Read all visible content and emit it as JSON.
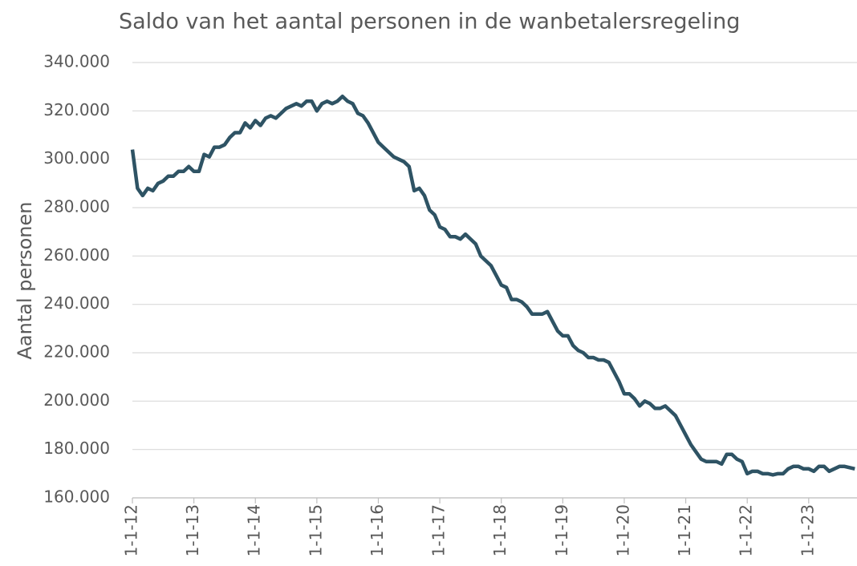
{
  "chart_data": {
    "type": "line",
    "title": "Saldo van het aantal personen in de wanbetalersregeling",
    "y_label": "Aantal personen",
    "categories": [
      "1-1-12",
      null,
      null,
      null,
      null,
      null,
      null,
      null,
      null,
      null,
      null,
      null,
      "1-1-13",
      null,
      null,
      null,
      null,
      null,
      null,
      null,
      null,
      null,
      null,
      null,
      "1-1-14",
      null,
      null,
      null,
      null,
      null,
      null,
      null,
      null,
      null,
      null,
      null,
      "1-1-15",
      null,
      null,
      null,
      null,
      null,
      null,
      null,
      null,
      null,
      null,
      null,
      "1-1-16",
      null,
      null,
      null,
      null,
      null,
      null,
      null,
      null,
      null,
      null,
      null,
      "1-1-17",
      null,
      null,
      null,
      null,
      null,
      null,
      null,
      null,
      null,
      null,
      null,
      "1-1-18",
      null,
      null,
      null,
      null,
      null,
      null,
      null,
      null,
      null,
      null,
      null,
      "1-1-19",
      null,
      null,
      null,
      null,
      null,
      null,
      null,
      null,
      null,
      null,
      null,
      "1-1-20",
      null,
      null,
      null,
      null,
      null,
      null,
      null,
      null,
      null,
      null,
      null,
      "1-1-21",
      null,
      null,
      null,
      null,
      null,
      null,
      null,
      null,
      null,
      null,
      null,
      "1-1-22",
      null,
      null,
      null,
      null,
      null,
      null,
      null,
      null,
      null,
      null,
      null,
      "1-1-23",
      null,
      null,
      null,
      null,
      null,
      null,
      null,
      null,
      null
    ],
    "series": [
      {
        "color": "#2e5364",
        "values": [
          304000,
          288000,
          285000,
          288000,
          287000,
          290000,
          291000,
          293000,
          293000,
          295000,
          295000,
          297000,
          295000,
          295000,
          302000,
          301000,
          305000,
          305000,
          306000,
          309000,
          311000,
          311000,
          315000,
          313000,
          316000,
          314000,
          317000,
          318000,
          317000,
          319000,
          321000,
          322000,
          323000,
          322000,
          324000,
          324000,
          320000,
          323000,
          324000,
          323000,
          324000,
          326000,
          324000,
          323000,
          319000,
          318000,
          315000,
          311000,
          307000,
          305000,
          303000,
          301000,
          300000,
          299000,
          297000,
          287000,
          288000,
          285000,
          279000,
          277000,
          272000,
          271000,
          268000,
          268000,
          267000,
          269000,
          267000,
          265000,
          260000,
          258000,
          256000,
          252000,
          248000,
          247000,
          242000,
          242000,
          241000,
          239000,
          236000,
          236000,
          236000,
          237000,
          233000,
          229000,
          227000,
          227000,
          223000,
          221000,
          220000,
          218000,
          218000,
          217000,
          217000,
          216000,
          212000,
          208000,
          203000,
          203000,
          201000,
          198000,
          200000,
          199000,
          197000,
          197000,
          198000,
          196000,
          194000,
          190000,
          186000,
          182000,
          179000,
          176000,
          175000,
          175000,
          175000,
          174000,
          178000,
          178000,
          176000,
          175000,
          170000,
          171000,
          171000,
          170000,
          170000,
          169500,
          170000,
          170000,
          172000,
          173000,
          173000,
          172000,
          172000,
          171000,
          173000,
          173000,
          171000,
          172000,
          173000,
          173000,
          172500,
          172000
        ]
      }
    ],
    "ylim": [
      160000,
      340000
    ],
    "yticks": [
      {
        "value": 160000,
        "label": "160.000"
      },
      {
        "value": 180000,
        "label": "180.000"
      },
      {
        "value": 200000,
        "label": "200.000"
      },
      {
        "value": 220000,
        "label": "220.000"
      },
      {
        "value": 240000,
        "label": "240.000"
      },
      {
        "value": 260000,
        "label": "260.000"
      },
      {
        "value": 280000,
        "label": "280.000"
      },
      {
        "value": 300000,
        "label": "300.000"
      },
      {
        "value": 320000,
        "label": "320.000"
      },
      {
        "value": 340000,
        "label": "340.000"
      }
    ],
    "grid": true
  }
}
